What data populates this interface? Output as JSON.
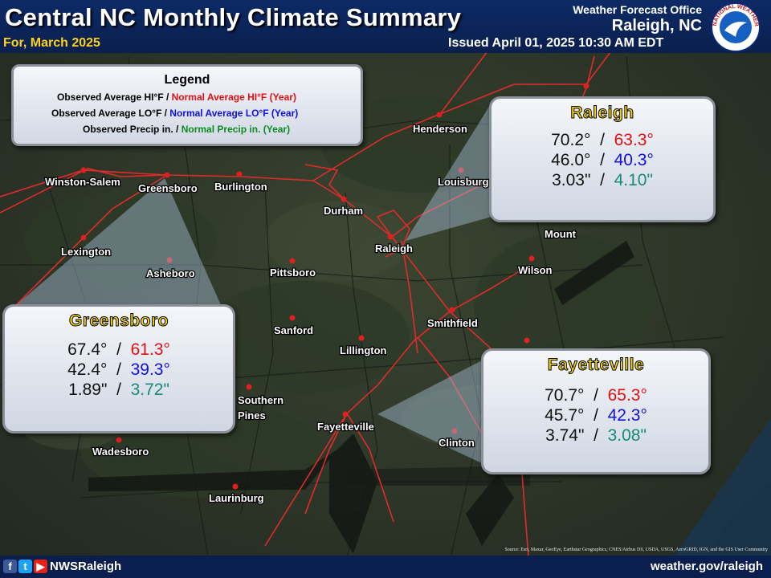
{
  "header": {
    "title": "Central NC Monthly Climate Summary",
    "subtitle": "For, March 2025",
    "issued": "Issued April 01, 2025 10:30 AM EDT",
    "office_line1": "Weather Forecast Office",
    "office_line2": "Raleigh, NC",
    "logo": "noaa-nws-logo",
    "logo_text": "NATIONAL WEATHER SERVICE"
  },
  "legend": {
    "title": "Legend",
    "hi_obs": "Observed Average  HI°F / ",
    "hi_norm": "Normal Average HI°F (Year)",
    "lo_obs": "Observed Average LO°F / ",
    "lo_norm": "Normal Average LO°F  (Year)",
    "pr_obs": "Observed Precip in. / ",
    "pr_norm": "Normal Precip in. (Year)"
  },
  "stations": {
    "raleigh": {
      "name": "Raleigh",
      "hi_obs": "70.2°",
      "hi_norm": "63.3°",
      "lo_obs": "46.0°",
      "lo_norm": "40.3°",
      "pr_obs": "3.03\"",
      "pr_norm": "4.10\""
    },
    "greensboro": {
      "name": "Greensboro",
      "hi_obs": "67.4°",
      "hi_norm": "61.3°",
      "lo_obs": "42.4°",
      "lo_norm": "39.3°",
      "pr_obs": "1.89\"",
      "pr_norm": "3.72\""
    },
    "fayetteville": {
      "name": "Fayetteville",
      "hi_obs": "70.7°",
      "hi_norm": "65.3°",
      "lo_obs": "45.7°",
      "lo_norm": "42.3°",
      "pr_obs": "3.74\"",
      "pr_norm": "3.08\""
    }
  },
  "cities": [
    "Henderson",
    "Winston-Salem",
    "Greensboro",
    "Burlington",
    "Durham",
    "Louisburg",
    "Raleigh",
    "Lexington",
    "Asheboro",
    "Pittsboro",
    "Mount",
    "Wilson",
    "Smithfield",
    "Sanford",
    "Lillington",
    "Southern",
    "Pines",
    "Fayetteville",
    "Clinton",
    "Wadesboro",
    "Laurinburg"
  ],
  "colors": {
    "header_bg": "#0d2a66",
    "subtitle": "#ffd21a",
    "observed_hi_normal": "#e01010",
    "observed_lo_normal": "#1010e0",
    "precip_normal": "#0b8a1e",
    "box_precip_normal": "#178a7a",
    "station_name": "#ffd80a"
  },
  "footer": {
    "icons": [
      "facebook-icon",
      "twitter-icon",
      "youtube-icon"
    ],
    "handle": "NWSRaleigh",
    "website": "weather.gov/raleigh",
    "credits": "Source: Esri, Maxar, GeoEye, Earthstar Geographics, CNES/Airbus DS, USDA, USGS, AeroGRID, IGN, and the GIS User Community"
  }
}
